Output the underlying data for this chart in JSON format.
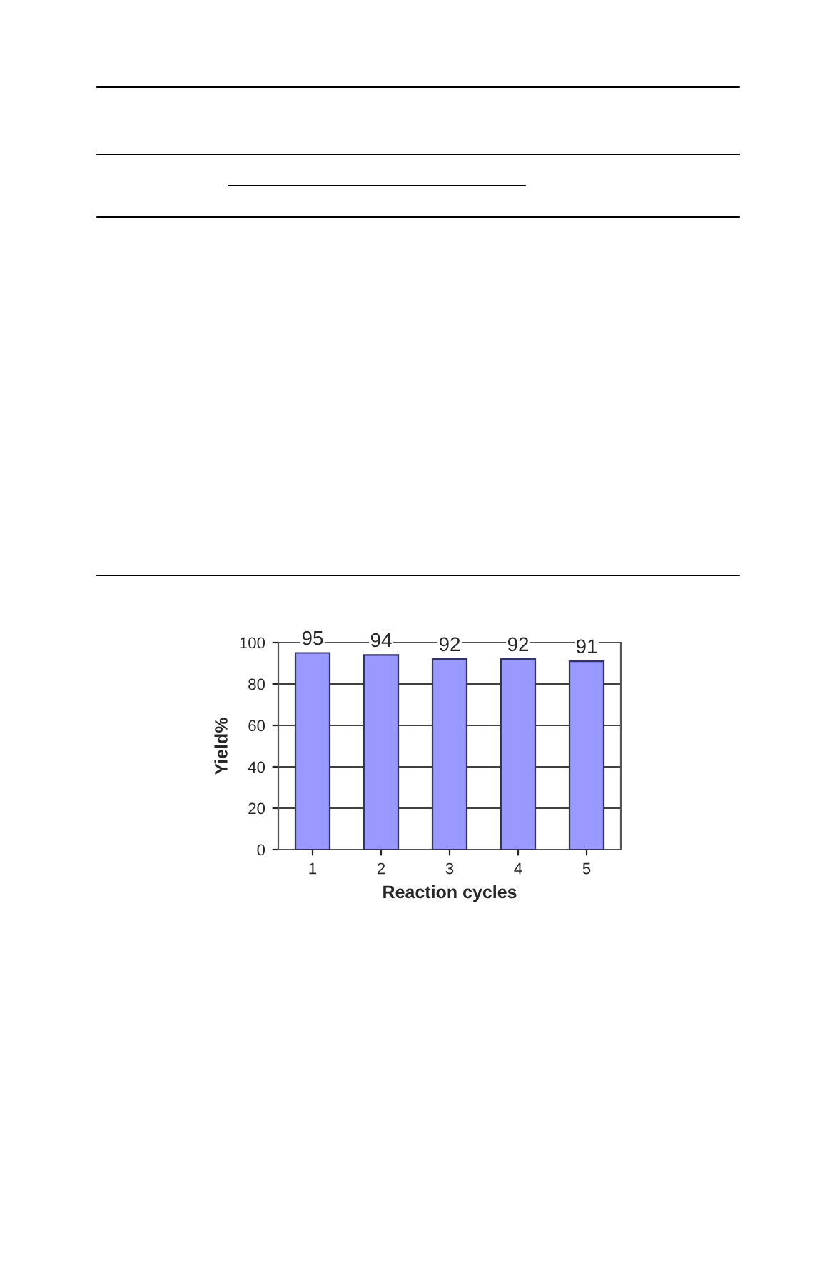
{
  "chart_data": {
    "type": "bar",
    "xlabel": "Reaction cycles",
    "ylabel": "Yield%",
    "categories": [
      "1",
      "2",
      "3",
      "4",
      "5"
    ],
    "values": [
      95,
      94,
      92,
      92,
      91
    ],
    "color": "#9999ff",
    "ylim": [
      0,
      100
    ],
    "yticks": [
      0,
      20,
      40,
      60,
      80,
      100
    ],
    "grid": "y",
    "data_labels": true
  }
}
